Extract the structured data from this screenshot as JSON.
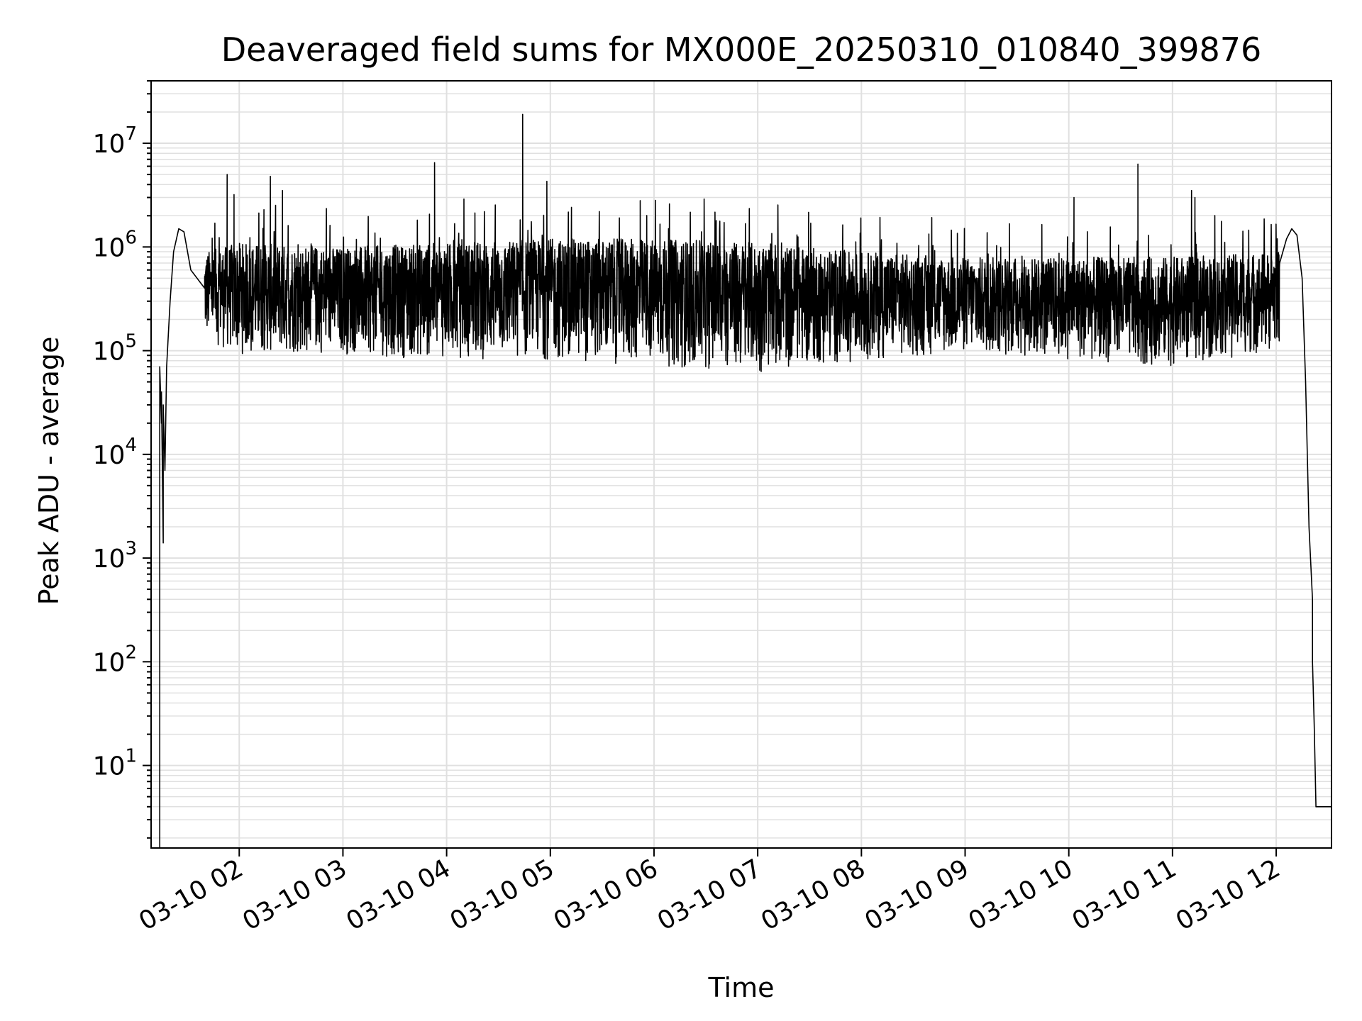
{
  "chart_data": {
    "type": "line",
    "title": "Deaveraged field sums for MX000E_20250310_010840_399876",
    "xlabel": "Time",
    "ylabel": "Peak ADU - average",
    "yscale": "log",
    "ylim": [
      1.6,
      40000000
    ],
    "xlim": [
      "03-10 01:09",
      "03-10 12:32"
    ],
    "grid": true,
    "line_color": "#000000",
    "grid_color": "#e0e0e0",
    "x_ticks": [
      "03-10 02",
      "03-10 03",
      "03-10 04",
      "03-10 05",
      "03-10 06",
      "03-10 07",
      "03-10 08",
      "03-10 09",
      "03-10 10",
      "03-10 11",
      "03-10 12"
    ],
    "y_ticks": [
      {
        "base": "10",
        "exp": "1",
        "value": 10
      },
      {
        "base": "10",
        "exp": "2",
        "value": 100
      },
      {
        "base": "10",
        "exp": "3",
        "value": 1000
      },
      {
        "base": "10",
        "exp": "4",
        "value": 10000
      },
      {
        "base": "10",
        "exp": "5",
        "value": 100000
      },
      {
        "base": "10",
        "exp": "6",
        "value": 1000000
      },
      {
        "base": "10",
        "exp": "7",
        "value": 10000000
      }
    ],
    "series": [
      {
        "points": [
          [
            "03-10 01:14",
            1.6
          ],
          [
            "03-10 01:14",
            70000
          ],
          [
            "03-10 01:15",
            20000
          ],
          [
            "03-10 01:15",
            40000
          ],
          [
            "03-10 01:16",
            1400
          ],
          [
            "03-10 01:16",
            30000
          ],
          [
            "03-10 01:17",
            7000
          ],
          [
            "03-10 01:18",
            70000
          ],
          [
            "03-10 01:20",
            300000
          ],
          [
            "03-10 01:22",
            900000
          ],
          [
            "03-10 01:25",
            1500000
          ],
          [
            "03-10 01:28",
            1400000
          ],
          [
            "03-10 01:32",
            600000
          ],
          [
            "03-10 01:40",
            400000
          ],
          [
            "03-10 12:02",
            700000
          ],
          [
            "03-10 12:06",
            1200000
          ],
          [
            "03-10 12:09",
            1500000
          ],
          [
            "03-10 12:12",
            1300000
          ],
          [
            "03-10 12:15",
            500000
          ],
          [
            "03-10 12:17",
            50000
          ],
          [
            "03-10 12:19",
            2000
          ],
          [
            "03-10 12:21",
            400
          ],
          [
            "03-10 12:21",
            100
          ],
          [
            "03-10 12:22",
            25
          ],
          [
            "03-10 12:23",
            4
          ],
          [
            "03-10 12:32",
            4
          ]
        ],
        "spikes": [
          [
            "03-10 01:53",
            5000000
          ],
          [
            "03-10 01:57",
            3200000
          ],
          [
            "03-10 02:18",
            4800000
          ],
          [
            "03-10 02:25",
            3500000
          ],
          [
            "03-10 03:53",
            6500000
          ],
          [
            "03-10 04:10",
            2900000
          ],
          [
            "03-10 04:44",
            19000000
          ],
          [
            "03-10 04:58",
            4300000
          ],
          [
            "03-10 05:52",
            2800000
          ],
          [
            "03-10 06:29",
            2900000
          ],
          [
            "03-10 10:03",
            3000000
          ],
          [
            "03-10 10:40",
            6300000
          ],
          [
            "03-10 11:11",
            3500000
          ],
          [
            "03-10 11:13",
            3000000
          ]
        ],
        "envelope": {
          "x": [
            "03-10 01:40",
            "03-10 02:00",
            "03-10 03:00",
            "03-10 04:00",
            "03-10 05:00",
            "03-10 06:00",
            "03-10 07:00",
            "03-10 08:00",
            "03-10 09:00",
            "03-10 10:00",
            "03-10 11:00",
            "03-10 12:02"
          ],
          "low": [
            120000,
            90000,
            90000,
            80000,
            80000,
            70000,
            60000,
            80000,
            90000,
            80000,
            70000,
            100000
          ],
          "high": [
            900000,
            1100000,
            1000000,
            1100000,
            1200000,
            1200000,
            1100000,
            900000,
            800000,
            800000,
            800000,
            900000
          ]
        }
      }
    ]
  }
}
